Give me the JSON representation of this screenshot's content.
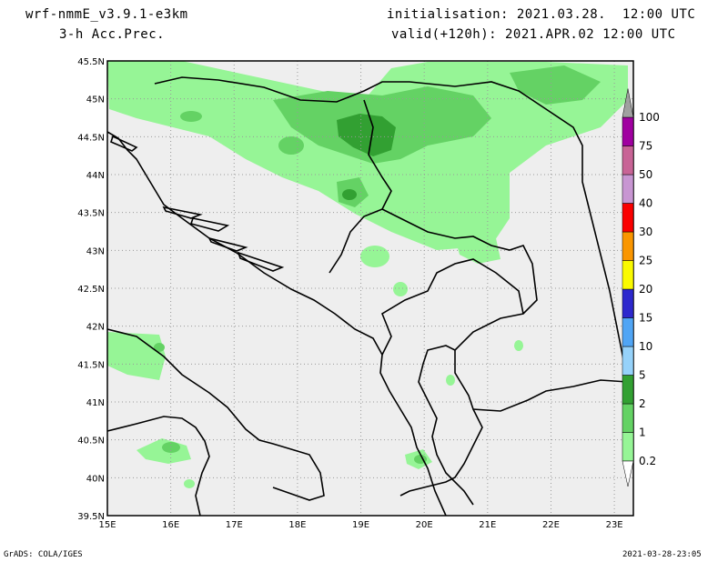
{
  "header": {
    "model": "wrf-nmmE_v3.9.1-e3km",
    "field": "3-h Acc.Prec.",
    "init": "initialisation: 2021.03.28.  12:00 UTC",
    "valid": "valid(+120h): 2021.APR.02 12:00 UTC"
  },
  "footer": {
    "left": "GrADS: COLA/IGES",
    "right": "2021-03-28-23:05"
  },
  "map": {
    "lon_range": [
      15,
      23.3
    ],
    "lat_range": [
      39.5,
      45.5
    ],
    "lon_ticks": [
      "15E",
      "16E",
      "17E",
      "18E",
      "19E",
      "20E",
      "21E",
      "22E",
      "23E"
    ],
    "lat_ticks": [
      "39.5N",
      "40N",
      "40.5N",
      "41N",
      "41.5N",
      "42N",
      "42.5N",
      "43N",
      "43.5N",
      "44N",
      "44.5N",
      "45N",
      "45.5N"
    ],
    "background_color": "#eeeeee",
    "grid": true
  },
  "colorbar": {
    "levels": [
      "0.2",
      "1",
      "2",
      "5",
      "10",
      "15",
      "20",
      "25",
      "30",
      "40",
      "50",
      "75",
      "100"
    ],
    "colors": [
      "#96f596",
      "#64d264",
      "#32a032",
      "#96d2fa",
      "#50a5f5",
      "#2d28cd",
      "#fafa00",
      "#fa9600",
      "#fa0000",
      "#c896d2",
      "#c86496",
      "#a000a0",
      "#a0a0a0"
    ]
  }
}
